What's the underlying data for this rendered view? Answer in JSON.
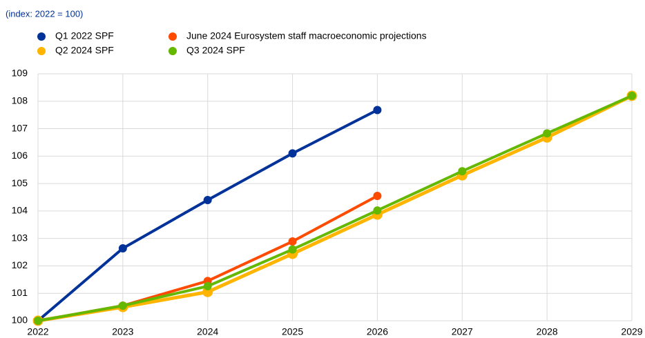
{
  "chart_data": {
    "type": "line",
    "subtitle": "(index: 2022 = 100)",
    "x": [
      2022,
      2023,
      2024,
      2025,
      2026,
      2027,
      2028,
      2029
    ],
    "series": [
      {
        "name": "Q1 2022 SPF",
        "color": "#003299",
        "values": [
          100,
          102.64,
          104.4,
          106.1,
          107.68,
          null,
          null,
          null
        ]
      },
      {
        "name": "Q2 2024 SPF",
        "color": "#ffb400",
        "values": [
          100,
          100.5,
          101.05,
          102.44,
          103.87,
          105.3,
          106.68,
          108.2
        ]
      },
      {
        "name": "June 2024 Eurosystem staff macroeconomic projections",
        "color": "#ff4b00",
        "values": [
          100,
          100.55,
          101.45,
          102.89,
          104.55,
          null,
          null,
          null
        ]
      },
      {
        "name": "Q3 2024 SPF",
        "color": "#65b800",
        "values": [
          100,
          100.55,
          101.26,
          102.6,
          104.02,
          105.45,
          106.83,
          108.2
        ]
      }
    ],
    "xlim": [
      2022,
      2029
    ],
    "xticks": [
      2022,
      2023,
      2024,
      2025,
      2026,
      2027,
      2028,
      2029
    ],
    "ylim": [
      100,
      109
    ],
    "yticks": [
      100,
      101,
      102,
      103,
      104,
      105,
      106,
      107,
      108,
      109
    ],
    "grid": true
  }
}
